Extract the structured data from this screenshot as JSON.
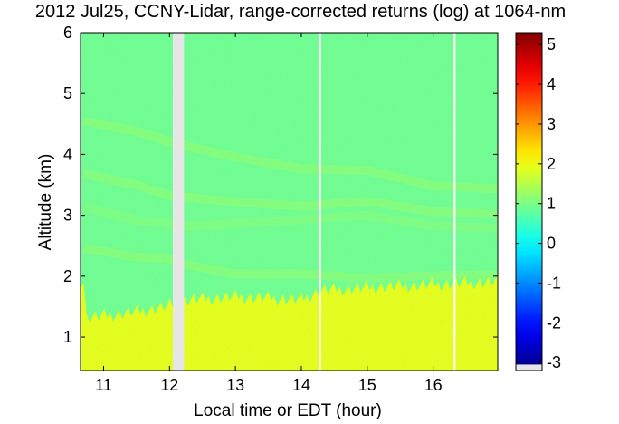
{
  "chart_data": {
    "type": "heatmap",
    "title": "2012 Jul25, CCNY-Lidar, range-corrected returns (log) at 1064-nm",
    "xlabel": "Local time or EDT (hour)",
    "ylabel": "Altitude (km)",
    "xlim": [
      10.65,
      16.98
    ],
    "ylim": [
      0.45,
      6.0
    ],
    "x_ticks": [
      11,
      12,
      13,
      14,
      15,
      16
    ],
    "y_ticks": [
      1,
      2,
      3,
      4,
      5,
      6
    ],
    "colorbar": {
      "colormap": "jet",
      "range": [
        -3.2,
        5.3
      ],
      "ticks": [
        -3,
        -2,
        -1,
        0,
        1,
        2,
        3,
        4,
        5
      ],
      "no_data_color": "#e6e6e6"
    },
    "background_value": 0.9,
    "data_gaps": [
      {
        "start": 12.05,
        "end": 12.22,
        "type": "no-data"
      },
      {
        "start": 14.27,
        "end": 14.3,
        "type": "no-data"
      },
      {
        "start": 16.31,
        "end": 16.34,
        "type": "no-data"
      }
    ],
    "boundary_layer": {
      "value": 1.9,
      "times": [
        10.7,
        11.5,
        12.0,
        12.3,
        13.0,
        14.0,
        14.3,
        15.0,
        16.0,
        16.98
      ],
      "top_altitudes": [
        1.3,
        1.4,
        1.5,
        1.6,
        1.65,
        1.6,
        1.75,
        1.8,
        1.85,
        1.9
      ]
    },
    "aerosol_layers": [
      {
        "value": 1.2,
        "times": [
          10.7,
          11.5,
          12.0,
          12.3,
          13.0,
          14.0,
          15.0,
          16.0,
          16.98
        ],
        "altitudes": [
          4.55,
          4.35,
          4.25,
          4.1,
          3.95,
          3.8,
          3.7,
          3.5,
          3.45
        ]
      },
      {
        "value": 1.2,
        "times": [
          10.7,
          11.5,
          12.0,
          12.3,
          13.0,
          14.0,
          15.0,
          16.0,
          16.98
        ],
        "altitudes": [
          3.65,
          3.5,
          3.35,
          3.25,
          3.25,
          3.15,
          3.2,
          3.1,
          3.0
        ]
      },
      {
        "value": 1.1,
        "times": [
          10.7,
          11.5,
          12.0,
          12.3,
          13.0,
          14.0,
          15.0,
          16.0,
          16.98
        ],
        "altitudes": [
          3.1,
          2.95,
          2.85,
          2.8,
          2.9,
          2.9,
          3.0,
          2.85,
          2.75
        ]
      },
      {
        "value": 1.2,
        "times": [
          10.7,
          11.5,
          12.0,
          12.3,
          13.0,
          14.0,
          15.0,
          16.0,
          16.98
        ],
        "altitudes": [
          2.45,
          2.35,
          2.25,
          2.2,
          2.05,
          2.0,
          2.0,
          2.0,
          2.0
        ]
      }
    ]
  }
}
